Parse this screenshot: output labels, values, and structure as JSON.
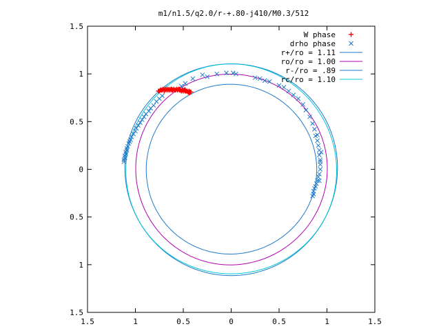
{
  "chart_data": {
    "type": "scatter",
    "title": "m1/n1.5/q2.0/r-+.80-j410/M0.3/512",
    "xlim": [
      -1.5,
      1.5
    ],
    "ylim": [
      -1.5,
      1.5
    ],
    "x_ticks": [
      -1.5,
      -1,
      -0.5,
      0,
      0.5,
      1,
      1.5
    ],
    "y_ticks": [
      -1.5,
      -1,
      -0.5,
      0,
      0.5,
      1,
      1.5
    ],
    "x_tick_labels": [
      "1.5",
      "1",
      "0.5",
      "0",
      "0.5",
      "1",
      "1.5"
    ],
    "y_tick_labels": [
      "1.5",
      "1",
      "0.5",
      "0",
      "0.5",
      "1",
      "1.5"
    ],
    "grid": false,
    "legend_position": "top-right",
    "legend": [
      {
        "label": "W phase",
        "marker": "plus",
        "color": "#ff0000"
      },
      {
        "label": "drho phase",
        "marker": "cross",
        "color": "#1f78c8"
      },
      {
        "label": "r+/ro = 1.11",
        "line": true,
        "color": "#1f78c8"
      },
      {
        "label": "ro/ro = 1.00",
        "line": true,
        "color": "#b000b0"
      },
      {
        "label": "r-/ro =  .89",
        "line": true,
        "color": "#1f78c8"
      },
      {
        "label": "rc/ro = 1.10",
        "line": true,
        "color": "#00c8d8"
      }
    ],
    "circles": [
      {
        "radius": 1.11,
        "color": "#1f78c8"
      },
      {
        "radius": 1.0,
        "color": "#b000b0"
      },
      {
        "radius": 0.89,
        "color": "#1f78c8"
      },
      {
        "radius": 1.1,
        "color": "#00c8d8"
      }
    ],
    "w_phase": {
      "color": "#ff0000",
      "points": [
        [
          -0.75,
          0.82
        ],
        [
          -0.74,
          0.83
        ],
        [
          -0.73,
          0.83
        ],
        [
          -0.72,
          0.83
        ],
        [
          -0.71,
          0.84
        ],
        [
          -0.7,
          0.83
        ],
        [
          -0.69,
          0.84
        ],
        [
          -0.68,
          0.83
        ],
        [
          -0.67,
          0.84
        ],
        [
          -0.66,
          0.83
        ],
        [
          -0.65,
          0.84
        ],
        [
          -0.64,
          0.83
        ],
        [
          -0.63,
          0.84
        ],
        [
          -0.62,
          0.83
        ],
        [
          -0.61,
          0.83
        ],
        [
          -0.6,
          0.84
        ],
        [
          -0.59,
          0.83
        ],
        [
          -0.58,
          0.83
        ],
        [
          -0.57,
          0.84
        ],
        [
          -0.56,
          0.83
        ],
        [
          -0.55,
          0.84
        ],
        [
          -0.54,
          0.83
        ],
        [
          -0.53,
          0.83
        ],
        [
          -0.52,
          0.82
        ],
        [
          -0.51,
          0.83
        ],
        [
          -0.5,
          0.82
        ],
        [
          -0.49,
          0.83
        ],
        [
          -0.48,
          0.82
        ],
        [
          -0.47,
          0.82
        ],
        [
          -0.46,
          0.82
        ],
        [
          -0.45,
          0.81
        ],
        [
          -0.44,
          0.82
        ],
        [
          -0.43,
          0.81
        ],
        [
          -0.42,
          0.81
        ],
        [
          -0.76,
          0.82
        ],
        [
          -0.7,
          0.82
        ],
        [
          -0.62,
          0.84
        ],
        [
          -0.54,
          0.84
        ],
        [
          -0.48,
          0.83
        ],
        [
          -0.44,
          0.8
        ]
      ]
    },
    "drho_phase": {
      "color": "#1f78c8",
      "points": [
        [
          -1.12,
          0.08
        ],
        [
          -1.12,
          0.1
        ],
        [
          -1.11,
          0.12
        ],
        [
          -1.11,
          0.14
        ],
        [
          -1.1,
          0.16
        ],
        [
          -1.1,
          0.18
        ],
        [
          -1.09,
          0.2
        ],
        [
          -1.09,
          0.22
        ],
        [
          -1.08,
          0.24
        ],
        [
          -1.07,
          0.27
        ],
        [
          -1.06,
          0.29
        ],
        [
          -1.05,
          0.31
        ],
        [
          -1.04,
          0.34
        ],
        [
          -1.02,
          0.37
        ],
        [
          -1.0,
          0.4
        ],
        [
          -0.99,
          0.43
        ],
        [
          -0.97,
          0.46
        ],
        [
          -0.95,
          0.49
        ],
        [
          -0.93,
          0.52
        ],
        [
          -0.91,
          0.55
        ],
        [
          -0.89,
          0.58
        ],
        [
          -0.86,
          0.61
        ],
        [
          -0.84,
          0.64
        ],
        [
          -0.81,
          0.67
        ],
        [
          -0.78,
          0.71
        ],
        [
          -0.75,
          0.74
        ],
        [
          -0.72,
          0.77
        ],
        [
          -0.52,
          0.87
        ],
        [
          -0.5,
          0.84
        ],
        [
          -0.48,
          0.9
        ],
        [
          -0.4,
          0.95
        ],
        [
          -0.3,
          0.99
        ],
        [
          -0.25,
          0.97
        ],
        [
          -0.15,
          1.0
        ],
        [
          -0.05,
          1.01
        ],
        [
          0.02,
          1.01
        ],
        [
          0.05,
          1.0
        ],
        [
          0.25,
          0.96
        ],
        [
          0.3,
          0.95
        ],
        [
          0.35,
          0.93
        ],
        [
          0.4,
          0.92
        ],
        [
          0.5,
          0.88
        ],
        [
          0.55,
          0.86
        ],
        [
          0.6,
          0.82
        ],
        [
          0.65,
          0.78
        ],
        [
          0.7,
          0.74
        ],
        [
          0.75,
          0.68
        ],
        [
          0.78,
          0.62
        ],
        [
          0.82,
          0.55
        ],
        [
          0.85,
          0.48
        ],
        [
          0.87,
          0.42
        ],
        [
          0.88,
          0.35
        ],
        [
          0.9,
          0.3
        ],
        [
          0.91,
          0.25
        ],
        [
          0.92,
          0.2
        ],
        [
          0.92,
          0.15
        ],
        [
          0.93,
          0.1
        ],
        [
          0.93,
          0.05
        ],
        [
          0.93,
          0.0
        ],
        [
          0.92,
          -0.05
        ],
        [
          0.91,
          -0.08
        ],
        [
          0.9,
          -0.12
        ],
        [
          0.89,
          -0.15
        ],
        [
          0.88,
          -0.18
        ],
        [
          0.87,
          -0.2
        ],
        [
          0.86,
          -0.23
        ],
        [
          0.86,
          -0.26
        ],
        [
          0.85,
          -0.28
        ],
        [
          0.92,
          -0.12
        ],
        [
          0.93,
          0.08
        ],
        [
          0.94,
          0.18
        ],
        [
          0.9,
          0.36
        ]
      ]
    }
  }
}
